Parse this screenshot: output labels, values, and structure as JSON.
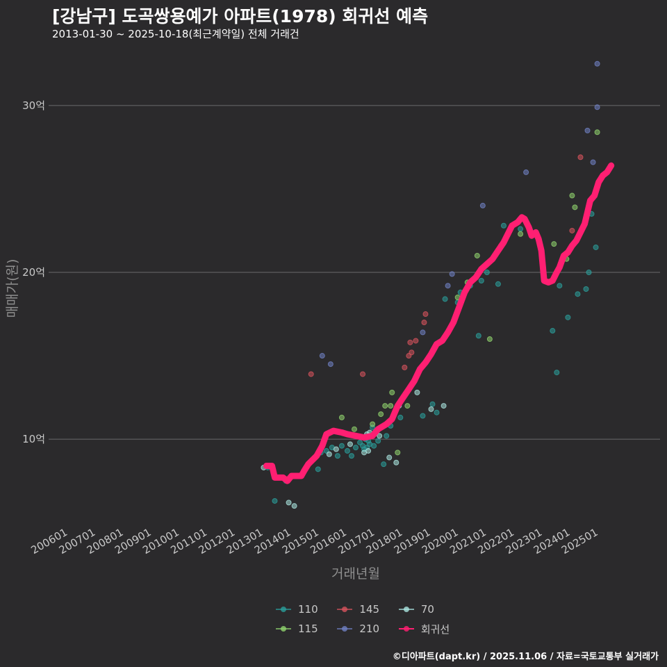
{
  "header": {
    "title": "[강남구] 도곡쌍용예가 아파트(1978) 회귀선 예측",
    "subtitle": "2013-01-30 ~ 2025-10-18(최근계약일) 전체 거래건"
  },
  "caption": "©디아파트(dapt.kr) / 2025.11.06 / 자료=국토교통부 실거래가",
  "colors": {
    "background": "#2b2a2c",
    "gridline": "#6b6b6b",
    "s110": "#2a9d9a",
    "s115": "#8fd16d",
    "s145": "#d6525c",
    "s210": "#6f7fc2",
    "s70": "#a9e3df",
    "regression": "#ff1f72"
  },
  "chart_data": {
    "type": "scatter",
    "title": "[강남구] 도곡쌍용예가 아파트(1978) 회귀선 예측",
    "xlabel": "거래년월",
    "ylabel": "매매가(원)",
    "xlim": [
      2005.3,
      2027.2
    ],
    "ylim": [
      4.8,
      33.2
    ],
    "x_ticks": [
      2006,
      2007,
      2008,
      2009,
      2010,
      2011,
      2012,
      2013,
      2014,
      2015,
      2016,
      2017,
      2018,
      2019,
      2020,
      2021,
      2022,
      2023,
      2024,
      2025
    ],
    "x_tick_labels": [
      "200601",
      "200701",
      "200801",
      "200901",
      "201001",
      "201101",
      "201201",
      "201301",
      "201401",
      "201501",
      "201601",
      "201701",
      "201801",
      "201901",
      "202001",
      "202101",
      "202201",
      "202301",
      "202401",
      "202501"
    ],
    "y_ticks": [
      10,
      20,
      30
    ],
    "y_tick_labels": [
      "10억",
      "20억",
      "30억"
    ],
    "legend": {
      "placement": "bottom",
      "items": [
        {
          "label": "110",
          "key": "s110",
          "kind": "point"
        },
        {
          "label": "145",
          "key": "s145",
          "kind": "point"
        },
        {
          "label": "70",
          "key": "s70",
          "kind": "point"
        },
        {
          "label": "115",
          "key": "s115",
          "kind": "point"
        },
        {
          "label": "210",
          "key": "s210",
          "kind": "point"
        },
        {
          "label": "회귀선",
          "key": "regression",
          "kind": "line"
        }
      ]
    },
    "series": [
      {
        "name": "110",
        "key": "s110",
        "points": [
          [
            2013.15,
            8.3
          ],
          [
            2013.4,
            6.3
          ],
          [
            2013.8,
            7.5
          ],
          [
            2014.95,
            8.2
          ],
          [
            2015.05,
            9.2
          ],
          [
            2015.25,
            9.3
          ],
          [
            2015.45,
            9.5
          ],
          [
            2015.65,
            9.0
          ],
          [
            2015.8,
            9.6
          ],
          [
            2016.0,
            9.3
          ],
          [
            2016.15,
            9.0
          ],
          [
            2016.3,
            9.5
          ],
          [
            2016.45,
            9.8
          ],
          [
            2016.55,
            9.6
          ],
          [
            2016.6,
            9.4
          ],
          [
            2016.65,
            10.0
          ],
          [
            2016.7,
            9.5
          ],
          [
            2016.75,
            9.9
          ],
          [
            2016.8,
            9.7
          ],
          [
            2016.85,
            10.2
          ],
          [
            2016.9,
            10.7
          ],
          [
            2016.95,
            9.6
          ],
          [
            2017.1,
            9.9
          ],
          [
            2017.3,
            8.5
          ],
          [
            2017.4,
            10.2
          ],
          [
            2017.55,
            10.8
          ],
          [
            2017.9,
            11.3
          ],
          [
            2018.7,
            11.4
          ],
          [
            2019.05,
            12.1
          ],
          [
            2019.2,
            11.6
          ],
          [
            2019.5,
            18.4
          ],
          [
            2019.95,
            18.2
          ],
          [
            2020.05,
            18.8
          ],
          [
            2020.4,
            19.2
          ],
          [
            2020.7,
            16.2
          ],
          [
            2020.8,
            19.5
          ],
          [
            2021.0,
            20.0
          ],
          [
            2021.4,
            19.3
          ],
          [
            2021.6,
            22.8
          ],
          [
            2022.0,
            22.9
          ],
          [
            2022.2,
            22.6
          ],
          [
            2023.35,
            16.5
          ],
          [
            2023.5,
            14.0
          ],
          [
            2023.6,
            19.2
          ],
          [
            2023.9,
            17.3
          ],
          [
            2024.25,
            18.7
          ],
          [
            2024.55,
            19.0
          ],
          [
            2024.65,
            20.0
          ],
          [
            2024.75,
            23.5
          ],
          [
            2024.9,
            21.5
          ]
        ]
      },
      {
        "name": "115",
        "key": "s115",
        "points": [
          [
            2015.8,
            11.3
          ],
          [
            2016.25,
            10.6
          ],
          [
            2016.9,
            10.9
          ],
          [
            2017.2,
            11.5
          ],
          [
            2017.35,
            12.0
          ],
          [
            2017.55,
            12.0
          ],
          [
            2017.6,
            12.8
          ],
          [
            2017.8,
            9.2
          ],
          [
            2018.15,
            12.0
          ],
          [
            2019.95,
            18.5
          ],
          [
            2020.3,
            19.4
          ],
          [
            2020.65,
            21.0
          ],
          [
            2021.1,
            16.0
          ],
          [
            2022.2,
            22.3
          ],
          [
            2023.4,
            21.7
          ],
          [
            2023.85,
            20.8
          ],
          [
            2024.05,
            24.6
          ],
          [
            2024.15,
            23.9
          ],
          [
            2024.95,
            28.4
          ]
        ]
      },
      {
        "name": "145",
        "key": "s145",
        "points": [
          [
            2014.7,
            13.9
          ],
          [
            2016.55,
            13.9
          ],
          [
            2018.05,
            14.3
          ],
          [
            2018.2,
            15.0
          ],
          [
            2018.25,
            15.8
          ],
          [
            2018.3,
            15.2
          ],
          [
            2018.45,
            15.9
          ],
          [
            2018.75,
            17.0
          ],
          [
            2018.8,
            17.5
          ],
          [
            2021.5,
            21.6
          ],
          [
            2024.05,
            22.5
          ],
          [
            2024.35,
            26.9
          ]
        ]
      },
      {
        "name": "210",
        "key": "s210",
        "points": [
          [
            2015.1,
            15.0
          ],
          [
            2015.4,
            14.5
          ],
          [
            2018.7,
            16.4
          ],
          [
            2019.6,
            19.2
          ],
          [
            2019.75,
            19.9
          ],
          [
            2020.85,
            24.0
          ],
          [
            2022.4,
            26.0
          ],
          [
            2024.6,
            28.5
          ],
          [
            2024.8,
            26.6
          ],
          [
            2024.95,
            29.9
          ],
          [
            2024.95,
            32.5
          ]
        ]
      },
      {
        "name": "70",
        "key": "s70",
        "points": [
          [
            2013.0,
            8.3
          ],
          [
            2013.3,
            8.4
          ],
          [
            2013.9,
            6.2
          ],
          [
            2014.1,
            6.0
          ],
          [
            2015.35,
            9.1
          ],
          [
            2015.6,
            9.4
          ],
          [
            2016.1,
            9.7
          ],
          [
            2016.6,
            9.2
          ],
          [
            2016.7,
            10.3
          ],
          [
            2016.75,
            9.3
          ],
          [
            2016.8,
            10.4
          ],
          [
            2017.15,
            10.2
          ],
          [
            2017.5,
            8.9
          ],
          [
            2017.75,
            8.6
          ],
          [
            2017.85,
            12.0
          ],
          [
            2018.5,
            12.8
          ],
          [
            2019.0,
            11.8
          ],
          [
            2019.45,
            12.0
          ]
        ]
      }
    ],
    "regression": {
      "name": "회귀선",
      "points": [
        [
          2013.1,
          8.4
        ],
        [
          2013.3,
          8.4
        ],
        [
          2013.4,
          7.7
        ],
        [
          2013.7,
          7.7
        ],
        [
          2013.85,
          7.5
        ],
        [
          2014.0,
          7.8
        ],
        [
          2014.35,
          7.8
        ],
        [
          2014.45,
          8.1
        ],
        [
          2014.6,
          8.5
        ],
        [
          2014.9,
          9.0
        ],
        [
          2015.1,
          9.6
        ],
        [
          2015.25,
          10.3
        ],
        [
          2015.5,
          10.5
        ],
        [
          2015.8,
          10.4
        ],
        [
          2016.0,
          10.3
        ],
        [
          2016.3,
          10.2
        ],
        [
          2016.6,
          10.1
        ],
        [
          2016.9,
          10.2
        ],
        [
          2017.1,
          10.6
        ],
        [
          2017.4,
          10.9
        ],
        [
          2017.6,
          11.2
        ],
        [
          2017.8,
          12.0
        ],
        [
          2018.0,
          12.5
        ],
        [
          2018.2,
          13.0
        ],
        [
          2018.4,
          13.5
        ],
        [
          2018.6,
          14.2
        ],
        [
          2018.8,
          14.6
        ],
        [
          2019.0,
          15.1
        ],
        [
          2019.2,
          15.7
        ],
        [
          2019.4,
          15.9
        ],
        [
          2019.6,
          16.4
        ],
        [
          2019.8,
          17.0
        ],
        [
          2020.0,
          17.9
        ],
        [
          2020.2,
          18.8
        ],
        [
          2020.4,
          19.4
        ],
        [
          2020.6,
          19.7
        ],
        [
          2020.8,
          20.2
        ],
        [
          2021.0,
          20.5
        ],
        [
          2021.2,
          20.8
        ],
        [
          2021.4,
          21.3
        ],
        [
          2021.6,
          21.8
        ],
        [
          2021.75,
          22.3
        ],
        [
          2021.9,
          22.8
        ],
        [
          2022.1,
          23.0
        ],
        [
          2022.25,
          23.3
        ],
        [
          2022.35,
          23.2
        ],
        [
          2022.5,
          22.7
        ],
        [
          2022.6,
          22.2
        ],
        [
          2022.75,
          22.4
        ],
        [
          2022.85,
          22.0
        ],
        [
          2022.95,
          21.3
        ],
        [
          2023.05,
          19.5
        ],
        [
          2023.2,
          19.4
        ],
        [
          2023.35,
          19.5
        ],
        [
          2023.5,
          20.0
        ],
        [
          2023.6,
          20.3
        ],
        [
          2023.75,
          21.0
        ],
        [
          2023.9,
          21.2
        ],
        [
          2024.05,
          21.6
        ],
        [
          2024.2,
          21.9
        ],
        [
          2024.35,
          22.4
        ],
        [
          2024.5,
          22.9
        ],
        [
          2024.6,
          23.6
        ],
        [
          2024.7,
          24.3
        ],
        [
          2024.85,
          24.6
        ],
        [
          2025.0,
          25.4
        ],
        [
          2025.15,
          25.8
        ],
        [
          2025.3,
          26.0
        ],
        [
          2025.45,
          26.4
        ]
      ]
    }
  }
}
